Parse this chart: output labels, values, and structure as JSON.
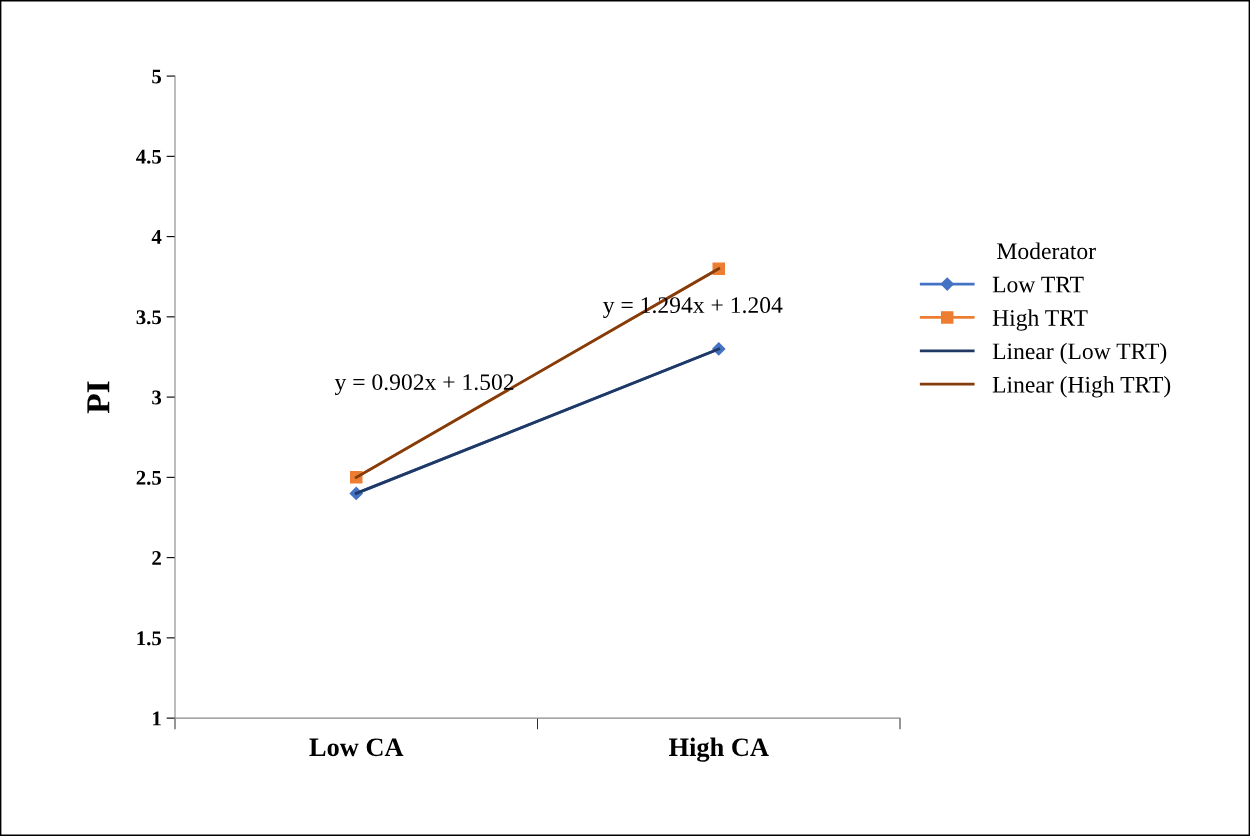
{
  "chart_data": {
    "type": "line",
    "ylabel": "PI",
    "legend_title": "Moderator",
    "categories": [
      "Low CA",
      "High CA"
    ],
    "series": [
      {
        "name": "Low TRT",
        "color": "#4472c4",
        "values": [
          2.4,
          3.3
        ],
        "marker": "diamond"
      },
      {
        "name": "High TRT",
        "color": "#ed7d31",
        "values": [
          2.5,
          3.8
        ],
        "marker": "square"
      },
      {
        "name": "Linear (Low TRT)",
        "color": "#1f3864",
        "values": [
          2.4,
          3.3
        ],
        "marker": "none"
      },
      {
        "name": "Linear (High TRT)",
        "color": "#843c0c",
        "values": [
          2.5,
          3.8
        ],
        "marker": "none"
      }
    ],
    "annotations": [
      "y = 0.902x + 1.502",
      "y = 1.294x + 1.204"
    ],
    "ylim": [
      1,
      5
    ],
    "yticks": [
      1,
      1.5,
      2,
      2.5,
      3,
      3.5,
      4,
      4.5,
      5
    ],
    "grid": false,
    "legend": "right",
    "line_style": "solid"
  }
}
